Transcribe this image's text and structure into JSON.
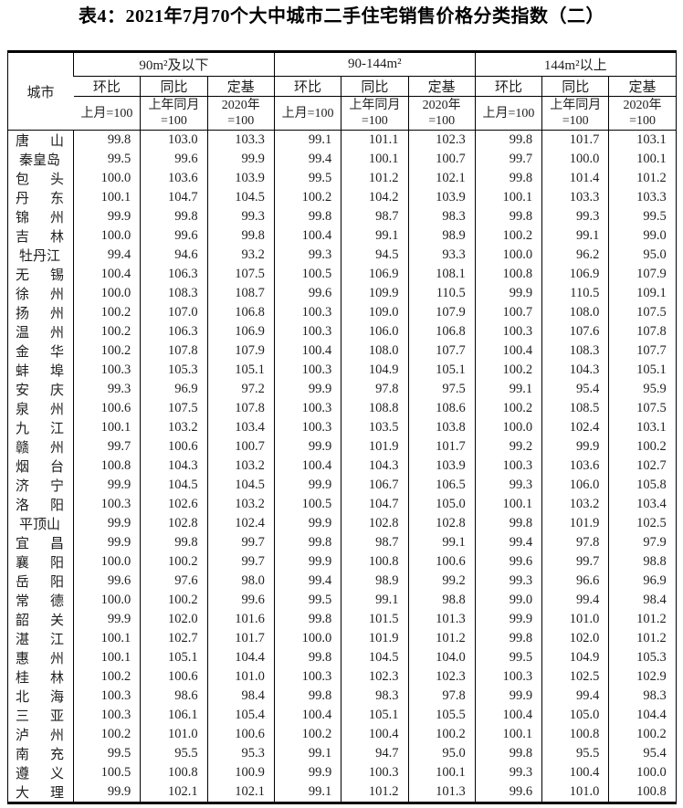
{
  "title": "表4：2021年7月70个大中城市二手住宅销售价格分类指数（二）",
  "table": {
    "city_header": "城市",
    "groups": [
      {
        "label": "90m²及以下"
      },
      {
        "label": "90-144m²"
      },
      {
        "label": "144m²以上"
      }
    ],
    "sub_headers": [
      "环比",
      "同比",
      "定基"
    ],
    "base_headers": [
      "上月=100",
      "上年同月\n=100",
      "2020年\n=100"
    ],
    "rows": [
      {
        "city": "唐山",
        "values": [
          "99.8",
          "103.0",
          "103.3",
          "99.1",
          "101.1",
          "102.3",
          "99.8",
          "101.7",
          "103.1"
        ]
      },
      {
        "city": "秦皇岛",
        "values": [
          "99.5",
          "99.6",
          "99.9",
          "99.4",
          "100.1",
          "100.7",
          "99.7",
          "100.0",
          "100.1"
        ]
      },
      {
        "city": "包头",
        "values": [
          "100.0",
          "103.6",
          "103.9",
          "99.5",
          "101.2",
          "102.1",
          "99.8",
          "101.4",
          "101.2"
        ]
      },
      {
        "city": "丹东",
        "values": [
          "100.1",
          "104.7",
          "104.5",
          "100.2",
          "104.2",
          "103.9",
          "100.1",
          "103.3",
          "103.3"
        ]
      },
      {
        "city": "锦州",
        "values": [
          "99.9",
          "99.8",
          "99.3",
          "99.8",
          "98.7",
          "98.3",
          "99.8",
          "99.3",
          "99.5"
        ]
      },
      {
        "city": "吉林",
        "values": [
          "100.0",
          "99.6",
          "99.8",
          "100.4",
          "99.1",
          "98.9",
          "100.2",
          "99.1",
          "99.0"
        ]
      },
      {
        "city": "牡丹江",
        "values": [
          "99.4",
          "94.6",
          "93.2",
          "99.3",
          "94.5",
          "93.3",
          "100.0",
          "96.2",
          "95.0"
        ]
      },
      {
        "city": "无锡",
        "values": [
          "100.4",
          "106.3",
          "107.5",
          "100.5",
          "106.9",
          "108.1",
          "100.8",
          "106.9",
          "107.9"
        ]
      },
      {
        "city": "徐州",
        "values": [
          "100.0",
          "108.3",
          "108.7",
          "99.6",
          "109.9",
          "110.5",
          "99.9",
          "110.5",
          "109.1"
        ]
      },
      {
        "city": "扬州",
        "values": [
          "100.2",
          "107.0",
          "106.8",
          "100.3",
          "109.0",
          "107.9",
          "100.7",
          "108.0",
          "107.5"
        ]
      },
      {
        "city": "温州",
        "values": [
          "100.2",
          "106.3",
          "106.9",
          "100.3",
          "106.0",
          "106.8",
          "100.3",
          "107.6",
          "107.8"
        ]
      },
      {
        "city": "金华",
        "values": [
          "100.2",
          "107.8",
          "107.9",
          "100.4",
          "108.0",
          "107.7",
          "100.4",
          "108.3",
          "107.7"
        ]
      },
      {
        "city": "蚌埠",
        "values": [
          "100.3",
          "105.3",
          "105.1",
          "100.3",
          "104.9",
          "105.1",
          "100.2",
          "104.3",
          "105.1"
        ]
      },
      {
        "city": "安庆",
        "values": [
          "99.3",
          "96.9",
          "97.2",
          "99.9",
          "97.8",
          "97.5",
          "99.1",
          "95.4",
          "95.9"
        ]
      },
      {
        "city": "泉州",
        "values": [
          "100.6",
          "107.5",
          "107.8",
          "100.3",
          "108.8",
          "108.6",
          "100.2",
          "108.5",
          "107.5"
        ]
      },
      {
        "city": "九江",
        "values": [
          "100.1",
          "103.2",
          "103.4",
          "100.3",
          "103.5",
          "103.8",
          "100.0",
          "102.4",
          "103.1"
        ]
      },
      {
        "city": "赣州",
        "values": [
          "99.7",
          "100.6",
          "100.7",
          "99.9",
          "101.9",
          "101.7",
          "99.2",
          "99.9",
          "100.2"
        ]
      },
      {
        "city": "烟台",
        "values": [
          "100.8",
          "104.3",
          "103.2",
          "100.4",
          "104.3",
          "103.9",
          "100.3",
          "103.6",
          "102.7"
        ]
      },
      {
        "city": "济宁",
        "values": [
          "99.9",
          "104.5",
          "104.5",
          "99.9",
          "106.7",
          "106.5",
          "99.3",
          "106.0",
          "105.8"
        ]
      },
      {
        "city": "洛阳",
        "values": [
          "100.3",
          "102.6",
          "103.2",
          "100.5",
          "104.7",
          "105.0",
          "100.1",
          "103.2",
          "103.4"
        ]
      },
      {
        "city": "平顶山",
        "values": [
          "99.9",
          "102.8",
          "102.4",
          "99.9",
          "102.8",
          "102.8",
          "99.8",
          "101.9",
          "102.5"
        ]
      },
      {
        "city": "宜昌",
        "values": [
          "99.9",
          "99.8",
          "99.7",
          "99.8",
          "98.7",
          "99.1",
          "99.4",
          "97.8",
          "97.9"
        ]
      },
      {
        "city": "襄阳",
        "values": [
          "100.0",
          "100.2",
          "99.7",
          "99.9",
          "100.8",
          "100.6",
          "99.6",
          "99.7",
          "98.8"
        ]
      },
      {
        "city": "岳阳",
        "values": [
          "99.6",
          "97.6",
          "98.0",
          "99.4",
          "98.9",
          "99.2",
          "99.3",
          "96.6",
          "96.9"
        ]
      },
      {
        "city": "常德",
        "values": [
          "100.0",
          "100.2",
          "99.6",
          "99.5",
          "99.1",
          "98.8",
          "99.0",
          "99.4",
          "98.4"
        ]
      },
      {
        "city": "韶关",
        "values": [
          "99.9",
          "102.0",
          "101.6",
          "99.8",
          "101.5",
          "101.3",
          "99.9",
          "101.0",
          "101.2"
        ]
      },
      {
        "city": "湛江",
        "values": [
          "100.1",
          "102.7",
          "101.7",
          "100.0",
          "101.9",
          "101.2",
          "99.8",
          "102.0",
          "101.2"
        ]
      },
      {
        "city": "惠州",
        "values": [
          "100.1",
          "105.1",
          "104.4",
          "99.8",
          "104.5",
          "104.0",
          "99.5",
          "104.9",
          "105.3"
        ]
      },
      {
        "city": "桂林",
        "values": [
          "100.2",
          "100.6",
          "101.0",
          "100.3",
          "102.3",
          "102.3",
          "100.3",
          "102.5",
          "102.9"
        ]
      },
      {
        "city": "北海",
        "values": [
          "100.3",
          "98.6",
          "98.4",
          "99.8",
          "98.3",
          "97.8",
          "99.9",
          "99.4",
          "98.3"
        ]
      },
      {
        "city": "三亚",
        "values": [
          "100.3",
          "106.1",
          "105.4",
          "100.4",
          "105.1",
          "105.5",
          "100.4",
          "105.0",
          "104.4"
        ]
      },
      {
        "city": "泸州",
        "values": [
          "100.2",
          "101.0",
          "100.6",
          "100.2",
          "100.4",
          "100.2",
          "100.1",
          "100.8",
          "100.2"
        ]
      },
      {
        "city": "南充",
        "values": [
          "99.5",
          "95.5",
          "95.3",
          "99.1",
          "94.7",
          "95.0",
          "99.8",
          "95.5",
          "95.4"
        ]
      },
      {
        "city": "遵义",
        "values": [
          "100.5",
          "100.8",
          "100.9",
          "99.9",
          "100.3",
          "100.1",
          "99.3",
          "100.4",
          "100.0"
        ]
      },
      {
        "city": "大理",
        "values": [
          "99.9",
          "102.1",
          "102.1",
          "99.1",
          "101.2",
          "101.3",
          "99.6",
          "101.0",
          "100.8"
        ]
      }
    ]
  }
}
